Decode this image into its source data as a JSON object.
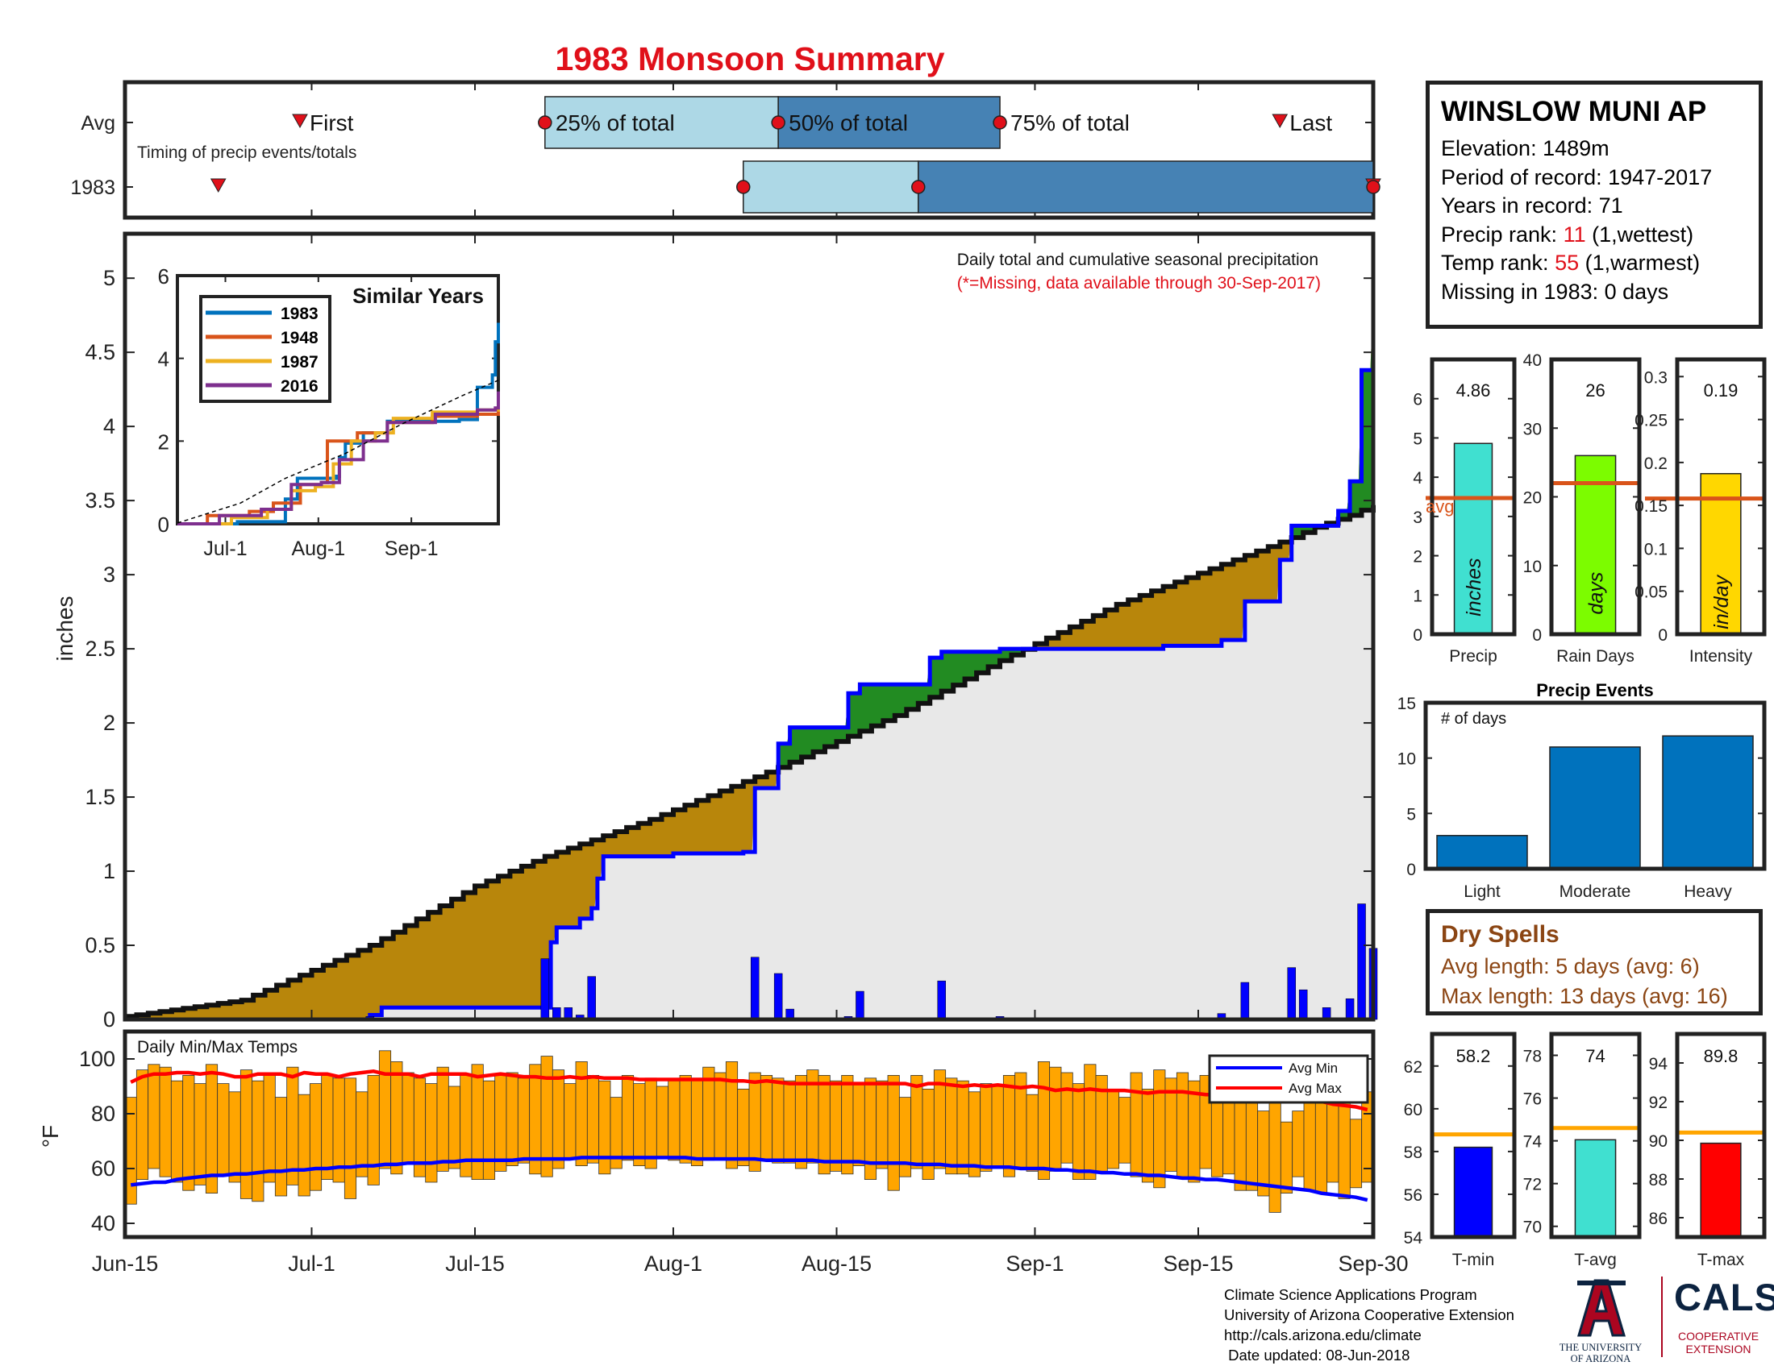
{
  "title": "1983 Monsoon Summary",
  "station": {
    "name": "WINSLOW MUNI AP",
    "elevation_label": "Elevation: 1489m",
    "period_label": "Period of record: 1947-2017",
    "years_label": "Years in record: 71",
    "precip_rank_prefix": "Precip rank: ",
    "precip_rank": "11",
    "precip_rank_suffix": " (1,wettest)",
    "temp_rank_prefix": "Temp rank: ",
    "temp_rank": "55",
    "temp_rank_suffix": " (1,warmest)",
    "missing_label": "Missing in 1983: 0 days"
  },
  "dry_spells": {
    "title": "Dry Spells",
    "avg": "Avg length: 5 days (avg: 6)",
    "max": "Max length: 13 days (avg: 16)"
  },
  "footer": {
    "line1": "Climate Science Applications Program",
    "line2": "University of Arizona Cooperative Extension",
    "line3": "http://cals.arizona.edu/climate",
    "line4": " Date updated: 08-Jun-2018"
  },
  "logos": {
    "ua_text1": "THE UNIVERSITY",
    "ua_text2": "OF ARIZONA",
    "cals": "CALS",
    "cals_text1": "COOPERATIVE",
    "cals_text2": "EXTENSION"
  },
  "colors": {
    "title_red": "#e0101a",
    "avg_line": "#d9541a",
    "obs_line": "#0000ff",
    "above_fill": "#b8860b",
    "below_fill": "#228b22",
    "base_fill": "#e8e8e8",
    "temp_bar": "#ffa500",
    "light_blue": "#add8e6",
    "steel_blue": "#4682b4",
    "precip_bar": "#40e0d0",
    "days_bar": "#7cfc00",
    "intensity_bar": "#ffd700",
    "events_bar": "#0072bd",
    "tmin_bar": "#0000ff",
    "tavg_bar": "#40e0d0",
    "tmax_bar": "#ff0000",
    "temp_avg_line": "#ffa500"
  },
  "chart_data": [
    {
      "type": "timeline",
      "rows": [
        "Avg",
        "1983"
      ],
      "caption": "Timing of precip events/totals",
      "x_range_dates": [
        "Jun-15",
        "Sep-30"
      ],
      "avg": {
        "first": "Jun-30",
        "p25": "Jul-21",
        "p50": "Aug-10",
        "p75": "Aug-29",
        "last": "Sep-22"
      },
      "year": {
        "first": "Jun-23",
        "p25": "Aug-7",
        "p50": "Aug-22",
        "p75": "Sep-30",
        "last": "Sep-30"
      },
      "labels": {
        "first": "First",
        "p25": "25% of total",
        "p50": "50% of total",
        "p75": "75% of total",
        "last": "Last"
      }
    },
    {
      "type": "area",
      "title": "Daily total and cumulative seasonal precipitation",
      "note": "(*=Missing, data available through 30-Sep-2017)",
      "ylabel": "inches",
      "ylim": [
        0,
        5.3
      ],
      "yticks": [
        "0",
        "0.5",
        "1",
        "1.5",
        "2",
        "2.5",
        "3",
        "3.5",
        "4",
        "4.5",
        "5"
      ],
      "xticks": [
        "Jun-15",
        "Jul-1",
        "Jul-15",
        "Aug-1",
        "Aug-15",
        "Sep-1",
        "Sep-15",
        "Sep-30"
      ],
      "x_tick_days": [
        0,
        16,
        30,
        47,
        61,
        78,
        92,
        107
      ],
      "avg_cumulative_anchor_days": [
        0,
        10,
        21,
        30,
        36,
        45,
        56,
        66,
        75,
        85,
        95,
        100,
        102,
        105,
        107
      ],
      "avg_cumulative_anchor_values": [
        0.02,
        0.13,
        0.5,
        0.9,
        1.1,
        1.35,
        1.7,
        2.05,
        2.42,
        2.8,
        3.1,
        3.25,
        3.32,
        3.4,
        3.47
      ],
      "observed_cumulative_steps": [
        [
          0,
          0
        ],
        [
          21,
          0.03
        ],
        [
          22,
          0.08
        ],
        [
          36,
          0.08
        ],
        [
          36.5,
          0.52
        ],
        [
          37,
          0.62
        ],
        [
          39,
          0.68
        ],
        [
          40,
          0.75
        ],
        [
          40.5,
          0.95
        ],
        [
          41,
          1.1
        ],
        [
          47,
          1.12
        ],
        [
          53,
          1.13
        ],
        [
          54,
          1.56
        ],
        [
          56,
          1.86
        ],
        [
          57,
          1.97
        ],
        [
          62,
          2.2
        ],
        [
          63,
          2.26
        ],
        [
          69,
          2.44
        ],
        [
          70,
          2.48
        ],
        [
          75,
          2.5
        ],
        [
          89,
          2.52
        ],
        [
          94,
          2.56
        ],
        [
          96,
          2.82
        ],
        [
          99,
          3.1
        ],
        [
          100,
          3.33
        ],
        [
          104,
          3.43
        ],
        [
          105,
          3.63
        ],
        [
          106,
          4.38
        ],
        [
          107,
          4.86
        ]
      ],
      "daily_precip": [
        [
          21,
          0.02
        ],
        [
          36,
          0.41
        ],
        [
          37,
          0.08
        ],
        [
          38,
          0.08
        ],
        [
          39,
          0.03
        ],
        [
          40,
          0.29
        ],
        [
          48,
          0.01
        ],
        [
          54,
          0.42
        ],
        [
          56,
          0.31
        ],
        [
          57,
          0.07
        ],
        [
          62,
          0.02
        ],
        [
          63,
          0.19
        ],
        [
          70,
          0.26
        ],
        [
          75,
          0.02
        ],
        [
          84,
          0.01
        ],
        [
          94,
          0.04
        ],
        [
          96,
          0.25
        ],
        [
          100,
          0.35
        ],
        [
          101,
          0.2
        ],
        [
          103,
          0.08
        ],
        [
          105,
          0.14
        ],
        [
          106,
          0.78
        ],
        [
          107,
          0.48
        ]
      ]
    },
    {
      "type": "inset_line",
      "title": "Similar Years",
      "ylim": [
        0,
        6
      ],
      "yticks": [
        "0",
        "2",
        "4",
        "6"
      ],
      "xticks": [
        "Jul-1",
        "Aug-1",
        "Sep-1"
      ],
      "x_tick_days": [
        16,
        47,
        78
      ],
      "series": [
        {
          "name": "1983",
          "color": "#0072bd",
          "points": [
            [
              0,
              0
            ],
            [
              20,
              0.05
            ],
            [
              36,
              0.1
            ],
            [
              36,
              0.6
            ],
            [
              40,
              1.1
            ],
            [
              53,
              1.15
            ],
            [
              54,
              1.6
            ],
            [
              56,
              1.95
            ],
            [
              62,
              2.2
            ],
            [
              70,
              2.48
            ],
            [
              94,
              2.52
            ],
            [
              100,
              3.3
            ],
            [
              105,
              3.6
            ],
            [
              106,
              4.4
            ],
            [
              107,
              4.86
            ]
          ]
        },
        {
          "name": "1948",
          "color": "#d9541a",
          "points": [
            [
              0,
              0
            ],
            [
              10,
              0.2
            ],
            [
              24,
              0.3
            ],
            [
              32,
              0.5
            ],
            [
              41,
              0.95
            ],
            [
              48,
              1.0
            ],
            [
              50,
              2.0
            ],
            [
              60,
              2.2
            ],
            [
              70,
              2.45
            ],
            [
              85,
              2.6
            ],
            [
              100,
              2.65
            ],
            [
              107,
              2.75
            ]
          ]
        },
        {
          "name": "1987",
          "color": "#edb120",
          "points": [
            [
              0,
              0
            ],
            [
              18,
              0.15
            ],
            [
              30,
              0.35
            ],
            [
              38,
              0.8
            ],
            [
              46,
              0.9
            ],
            [
              52,
              1.45
            ],
            [
              58,
              2.0
            ],
            [
              66,
              2.2
            ],
            [
              72,
              2.55
            ],
            [
              85,
              2.7
            ],
            [
              100,
              2.75
            ],
            [
              107,
              2.85
            ]
          ]
        },
        {
          "name": "2016",
          "color": "#7e2f8e",
          "points": [
            [
              0,
              0
            ],
            [
              14,
              0.2
            ],
            [
              28,
              0.35
            ],
            [
              38,
              0.95
            ],
            [
              48,
              1.0
            ],
            [
              54,
              1.55
            ],
            [
              62,
              2.0
            ],
            [
              70,
              2.45
            ],
            [
              86,
              2.65
            ],
            [
              100,
              2.75
            ],
            [
              106,
              2.8
            ],
            [
              107,
              3.2
            ]
          ]
        },
        {
          "name": "avg",
          "color": "#000000",
          "dashed": true,
          "points": [
            [
              0,
              0.02
            ],
            [
              21,
              0.5
            ],
            [
              36,
              1.1
            ],
            [
              56,
              1.7
            ],
            [
              75,
              2.42
            ],
            [
              95,
              3.1
            ],
            [
              107,
              3.47
            ]
          ]
        }
      ]
    },
    {
      "type": "bar",
      "title": "Daily Min/Max Temps",
      "ylabel": "°F",
      "ylim": [
        35,
        110
      ],
      "yticks": [
        "40",
        "60",
        "80",
        "100"
      ],
      "legend": [
        "Avg Min",
        "Avg Max"
      ],
      "legend_placement": "top-right",
      "tmax": [
        86,
        96,
        98,
        97,
        92,
        94,
        91,
        98,
        91,
        88,
        96,
        92,
        95,
        86,
        97,
        87,
        91,
        94,
        93,
        93,
        88,
        94,
        103,
        99,
        95,
        93,
        91,
        97,
        90,
        94,
        98,
        92,
        94,
        95,
        93,
        98,
        101,
        96,
        91,
        99,
        94,
        92,
        86,
        94,
        91,
        93,
        90,
        92,
        94,
        93,
        97,
        95,
        99,
        89,
        95,
        94,
        93,
        92,
        94,
        96,
        94,
        92,
        94,
        91,
        93,
        92,
        94,
        86,
        94,
        89,
        96,
        93,
        92,
        88,
        91,
        90,
        94,
        95,
        87,
        99,
        97,
        95,
        91,
        98,
        94,
        89,
        86,
        95,
        89,
        96,
        93,
        95,
        92,
        94,
        89,
        96,
        88,
        87,
        81,
        85,
        77,
        81,
        88,
        86,
        84,
        88,
        78,
        88
      ],
      "tmin": [
        47,
        56,
        60,
        57,
        55,
        52,
        54,
        51,
        58,
        55,
        49,
        48,
        55,
        50,
        54,
        50,
        52,
        56,
        55,
        49,
        57,
        54,
        60,
        58,
        62,
        57,
        55,
        59,
        60,
        57,
        56,
        56,
        59,
        61,
        62,
        58,
        57,
        60,
        64,
        61,
        62,
        58,
        60,
        63,
        61,
        60,
        64,
        63,
        62,
        61,
        63,
        64,
        60,
        61,
        59,
        63,
        62,
        62,
        60,
        62,
        58,
        59,
        58,
        61,
        56,
        60,
        52,
        57,
        60,
        56,
        60,
        58,
        58,
        57,
        59,
        60,
        57,
        60,
        59,
        56,
        59,
        62,
        56,
        56,
        59,
        60,
        62,
        57,
        55,
        53,
        59,
        57,
        55,
        60,
        57,
        58,
        52,
        52,
        50,
        44,
        51,
        57,
        52,
        51,
        55,
        49,
        53,
        55
      ],
      "avg_max": [
        91.5,
        93.5,
        94.5,
        94.5,
        95,
        95,
        94.5,
        95,
        94.5,
        93.5,
        93.5,
        94.5,
        94.5,
        94.5,
        93.5,
        95,
        94.5,
        94.5,
        93.5,
        94.5,
        95,
        95.5,
        94.5,
        94.5,
        94.5,
        93.5,
        94.5,
        94.5,
        94.5,
        94.5,
        93.5,
        94,
        94.5,
        94,
        93.5,
        93.5,
        93,
        93,
        93.5,
        93,
        93.5,
        93,
        93,
        93,
        92.5,
        92.5,
        92.5,
        92.5,
        92.5,
        92.5,
        92.5,
        92.5,
        92,
        92,
        91.5,
        92,
        91.5,
        91,
        91,
        91,
        91,
        91,
        91,
        91,
        91,
        91,
        91,
        91,
        90,
        91,
        91,
        90.5,
        90,
        90.5,
        90,
        90.5,
        90,
        89.5,
        90,
        89.5,
        88.5,
        89,
        88.5,
        89,
        88.5,
        88.5,
        88.5,
        88,
        87.5,
        88,
        88,
        88,
        87.5,
        87,
        87,
        87,
        86.5,
        86,
        86,
        85.5,
        85.5,
        85.5,
        84.5,
        84.5,
        83.5,
        83,
        82.5,
        81.5
      ],
      "avg_min": [
        54.0,
        54.5,
        55.0,
        55.0,
        56.0,
        56.5,
        57.0,
        57.5,
        57.5,
        58.0,
        58.0,
        58.5,
        59.0,
        59.0,
        59.5,
        59.5,
        60.0,
        60.0,
        60.5,
        60.5,
        61.0,
        61.0,
        61.5,
        61.5,
        62.0,
        62.0,
        62.0,
        62.5,
        62.5,
        63.0,
        63.0,
        63.0,
        63.0,
        63.0,
        63.5,
        63.5,
        63.5,
        63.5,
        63.5,
        64.0,
        64.0,
        64.0,
        64.0,
        64.0,
        64.0,
        64.0,
        64.0,
        64.0,
        64.0,
        63.5,
        63.5,
        63.5,
        63.5,
        63.5,
        63.5,
        63.0,
        63.0,
        63.0,
        63.0,
        63.0,
        62.5,
        62.5,
        62.5,
        62.5,
        62.0,
        62.0,
        62.0,
        62.0,
        61.5,
        61.5,
        61.5,
        61.0,
        61.0,
        61.0,
        60.5,
        60.5,
        60.5,
        60.0,
        60.0,
        60.0,
        59.5,
        59.5,
        59.0,
        59.0,
        58.5,
        58.5,
        58.0,
        58.0,
        57.5,
        57.5,
        57.0,
        56.5,
        56.5,
        56.0,
        56.0,
        55.5,
        55.0,
        54.5,
        54.0,
        53.5,
        53.0,
        52.5,
        52.0,
        51.0,
        50.5,
        50.0,
        49.5,
        48.5
      ]
    },
    {
      "type": "bar",
      "title": "Precip",
      "value_label": "4.86",
      "value": 4.86,
      "avg": 3.47,
      "avg_label": "avg",
      "unit_label": "inches",
      "ylim": [
        0,
        7
      ],
      "yticks": [
        "0",
        "1",
        "2",
        "3",
        "4",
        "5",
        "6"
      ]
    },
    {
      "type": "bar",
      "title": "Rain Days",
      "value_label": "26",
      "value": 26,
      "avg": 22,
      "unit_label": "days",
      "ylim": [
        0,
        40
      ],
      "yticks": [
        "0",
        "10",
        "20",
        "30",
        "40"
      ]
    },
    {
      "type": "bar",
      "title": "Intensity",
      "value_label": "0.19",
      "value": 0.187,
      "avg": 0.158,
      "unit_label": "in/day",
      "ylim": [
        0,
        0.32
      ],
      "yticks": [
        "0",
        "0.05",
        "0.1",
        "0.15",
        "0.2",
        "0.25",
        "0.3"
      ]
    },
    {
      "type": "bar",
      "title": "Precip Events",
      "ylabel": "# of days",
      "categories": [
        "Light",
        "Moderate",
        "Heavy"
      ],
      "values": [
        3,
        11,
        12
      ],
      "ylim": [
        0,
        15
      ],
      "yticks": [
        "0",
        "5",
        "10",
        "15"
      ]
    },
    {
      "type": "bar",
      "title": "T-min",
      "value_label": "58.2",
      "value": 58.2,
      "avg": 58.8,
      "ylim": [
        54,
        63.5
      ],
      "yticks": [
        "54",
        "56",
        "58",
        "60",
        "62"
      ]
    },
    {
      "type": "bar",
      "title": "T-avg",
      "value_label": "74",
      "value": 74.05,
      "avg": 74.6,
      "ylim": [
        69.5,
        79
      ],
      "yticks": [
        "70",
        "72",
        "74",
        "76",
        "78"
      ]
    },
    {
      "type": "bar",
      "title": "T-max",
      "value_label": "89.8",
      "value": 89.85,
      "avg": 90.4,
      "ylim": [
        85,
        95.5
      ],
      "yticks": [
        "86",
        "88",
        "90",
        "92",
        "94"
      ]
    }
  ]
}
